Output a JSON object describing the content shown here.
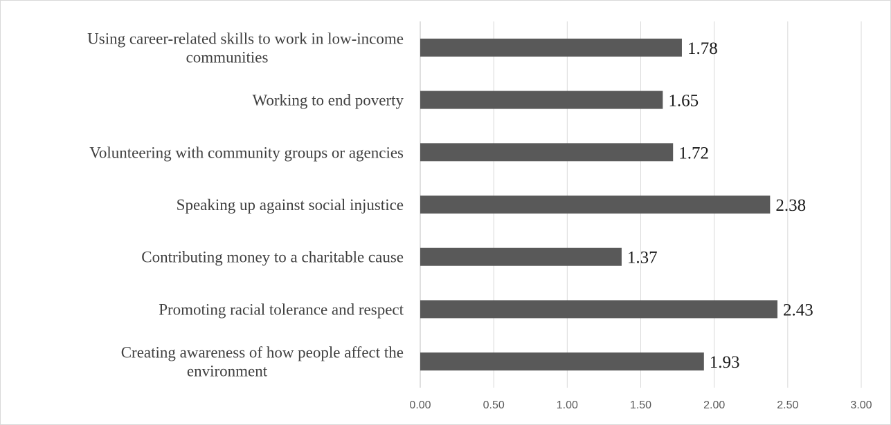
{
  "chart_data": {
    "type": "bar",
    "orientation": "horizontal",
    "categories": [
      [
        "Using career-related skills to work in low-income",
        "communities"
      ],
      [
        "Working to end poverty"
      ],
      [
        "Volunteering with community groups or agencies"
      ],
      [
        "Speaking up against social injustice"
      ],
      [
        "Contributing money to a charitable cause"
      ],
      [
        "Promoting racial tolerance and respect"
      ],
      [
        "Creating awareness of how people affect the",
        "environment"
      ]
    ],
    "values": [
      1.78,
      1.65,
      1.72,
      2.38,
      1.37,
      2.43,
      1.93
    ],
    "data_labels": [
      "1.78",
      "1.65",
      "1.72",
      "2.38",
      "1.37",
      "2.43",
      "1.93"
    ],
    "x_ticks": [
      "0.00",
      "0.50",
      "1.00",
      "1.50",
      "2.00",
      "2.50",
      "3.00"
    ],
    "xlim": [
      0,
      3
    ],
    "title": "",
    "xlabel": "",
    "ylabel": "",
    "grid": "vertical",
    "legend": "none",
    "bar_color": "#595959"
  }
}
